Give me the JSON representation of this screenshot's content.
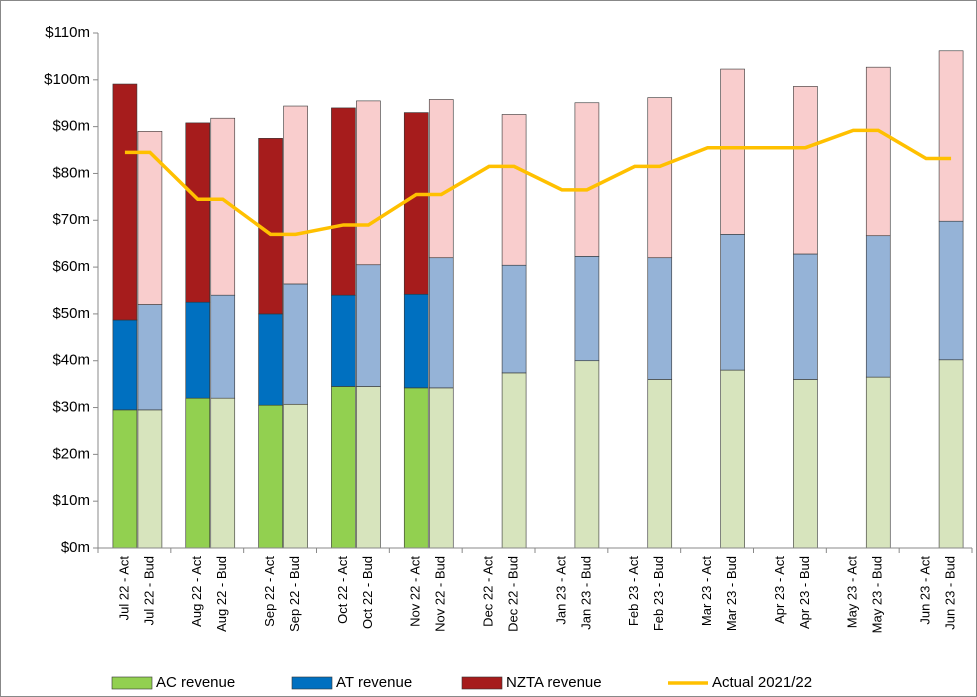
{
  "chart_data": {
    "type": "bar",
    "stacked": true,
    "categories": [
      "Jul 22 - Act",
      "Jul 22 - Bud",
      "Aug 22 - Act",
      "Aug 22 - Bud",
      "Sep 22 - Act",
      "Sep 22 - Bud",
      "Oct 22 - Act",
      "Oct 22 - Bud",
      "Nov 22 - Act",
      "Nov 22 - Bud",
      "Dec 22 - Act",
      "Dec 22 - Bud",
      "Jan 23 - Act",
      "Jan 23 - Bud",
      "Feb 23 - Act",
      "Feb 23 - Bud",
      "Mar 23 - Act",
      "Mar 23 - Bud",
      "Apr 23 - Act",
      "Apr 23 - Bud",
      "May 23 - Act",
      "May 23 - Bud",
      "Jun 23 - Act",
      "Jun 23 - Bud"
    ],
    "series": [
      {
        "name": "AC revenue",
        "type": "bar",
        "color": "#92d050",
        "budget_color": "#d7e4bd",
        "values": [
          29.5,
          29.5,
          32,
          32,
          30.5,
          30.7,
          34.5,
          34.5,
          34.2,
          34.2,
          null,
          37.4,
          null,
          40,
          null,
          36,
          null,
          38,
          null,
          36,
          null,
          36.5,
          null,
          40.2
        ]
      },
      {
        "name": "AT revenue",
        "type": "bar",
        "color": "#0070c0",
        "budget_color": "#95b3d7",
        "values": [
          19.2,
          22.5,
          20.5,
          22,
          19.5,
          25.7,
          19.5,
          26,
          20,
          27.8,
          null,
          23,
          null,
          22.3,
          null,
          26,
          null,
          29,
          null,
          26.8,
          null,
          30.2,
          null,
          29.6
        ]
      },
      {
        "name": "NZTA revenue",
        "type": "bar",
        "color": "#a61c1c",
        "budget_color": "#f9cdcd",
        "values": [
          50.4,
          37,
          38.3,
          37.8,
          37.5,
          38,
          40,
          35,
          38.8,
          33.8,
          null,
          32.2,
          null,
          32.8,
          null,
          34.2,
          null,
          35.3,
          null,
          35.8,
          null,
          36,
          null,
          36.4
        ]
      },
      {
        "name": "Actual 2021/22",
        "type": "line",
        "color": "#ffc000",
        "values": [
          84.5,
          84.5,
          74.5,
          74.5,
          67,
          67,
          69,
          69,
          75.5,
          75.5,
          81.5,
          81.5,
          76.5,
          76.5,
          81.5,
          81.5,
          85.5,
          85.5,
          85.5,
          85.5,
          89.2,
          89.2,
          83.2,
          83.2
        ]
      }
    ],
    "ylim": [
      0,
      110
    ],
    "yticks": [
      {
        "value": 0,
        "label": "$0m"
      },
      {
        "value": 10,
        "label": "$10m"
      },
      {
        "value": 20,
        "label": "$20m"
      },
      {
        "value": 30,
        "label": "$30m"
      },
      {
        "value": 40,
        "label": "$40m"
      },
      {
        "value": 50,
        "label": "$50m"
      },
      {
        "value": 60,
        "label": "$60m"
      },
      {
        "value": 70,
        "label": "$70m"
      },
      {
        "value": 80,
        "label": "$80m"
      },
      {
        "value": 90,
        "label": "$90m"
      },
      {
        "value": 100,
        "label": "$100m"
      },
      {
        "value": 110,
        "label": "$110m"
      }
    ],
    "grid": false,
    "legend": "bottom"
  }
}
